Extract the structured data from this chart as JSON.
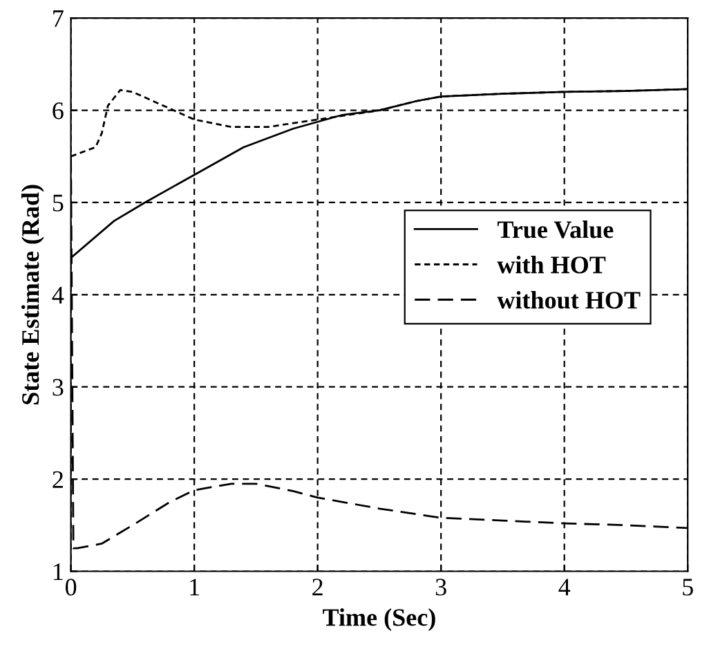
{
  "chart_data": {
    "type": "line",
    "xlabel": "Time (Sec)",
    "ylabel": "State Estimate (Rad)",
    "xlim": [
      0,
      5
    ],
    "ylim": [
      1,
      7
    ],
    "xticks": [
      0,
      1,
      2,
      3,
      4,
      5
    ],
    "yticks": [
      1,
      2,
      3,
      4,
      5,
      6,
      7
    ],
    "grid": true,
    "legend": "right",
    "marker": "none",
    "series": [
      {
        "name": "True Value",
        "color": "#000000",
        "line_style": "solid",
        "x": [
          0,
          0.35,
          0.6,
          1.0,
          1.4,
          1.8,
          2.2,
          2.5,
          2.8,
          3.0,
          3.5,
          4.0,
          4.5,
          5.0
        ],
        "values": [
          4.4,
          4.8,
          5.0,
          5.3,
          5.6,
          5.8,
          5.95,
          6.0,
          6.1,
          6.15,
          6.18,
          6.2,
          6.21,
          6.23
        ]
      },
      {
        "name": "with HOT",
        "color": "#000000",
        "line_style": "dotted",
        "x": [
          0,
          0.2,
          0.25,
          0.3,
          0.4,
          0.5,
          0.7,
          1.0,
          1.3,
          1.6,
          2.0,
          2.5,
          2.8,
          3.0,
          3.5,
          4.0,
          4.5,
          5.0
        ],
        "values": [
          5.5,
          5.6,
          5.75,
          6.05,
          6.22,
          6.2,
          6.08,
          5.9,
          5.82,
          5.82,
          5.9,
          6.0,
          6.1,
          6.15,
          6.18,
          6.2,
          6.21,
          6.23
        ]
      },
      {
        "name": "without HOT",
        "color": "#000000",
        "line_style": "dashed",
        "x": [
          0,
          0.02,
          0.05,
          0.25,
          0.5,
          0.8,
          1.0,
          1.3,
          1.5,
          1.8,
          2.0,
          2.5,
          3.0,
          3.5,
          4.0,
          4.5,
          5.0
        ],
        "values": [
          5.5,
          1.25,
          1.25,
          1.3,
          1.5,
          1.75,
          1.88,
          1.95,
          1.95,
          1.87,
          1.8,
          1.68,
          1.58,
          1.55,
          1.52,
          1.5,
          1.47
        ]
      }
    ]
  }
}
